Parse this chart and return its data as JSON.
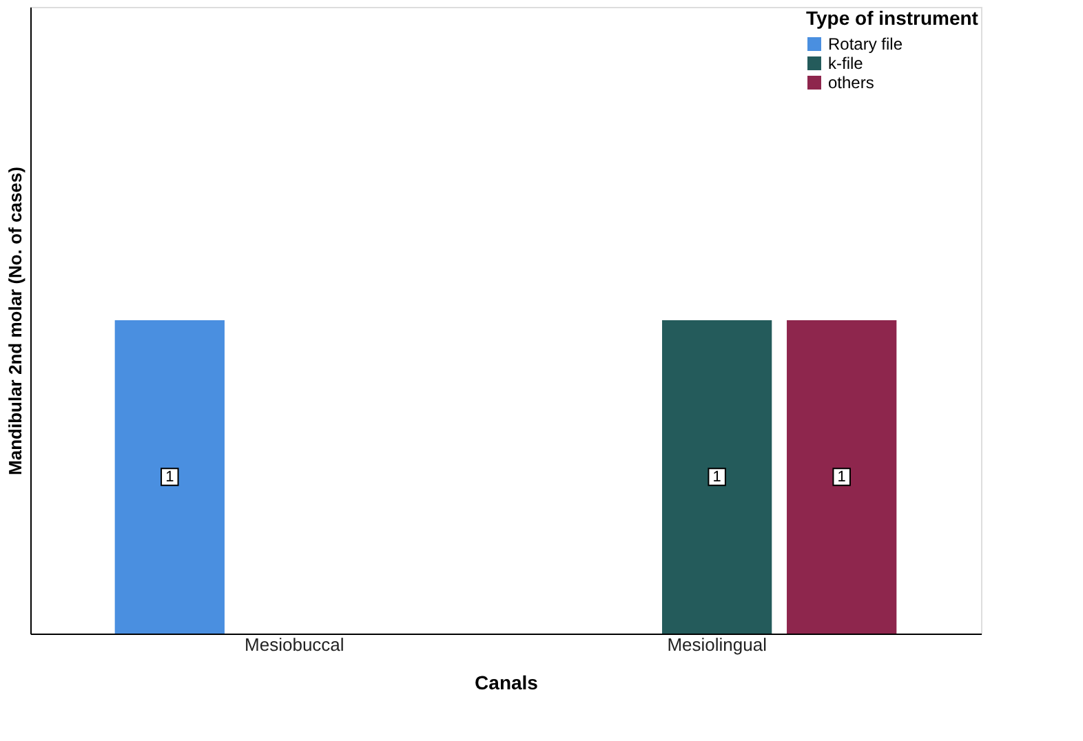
{
  "chart_data": {
    "type": "bar",
    "xlabel": "Canals",
    "ylabel": "Mandibular 2nd molar (No. of cases)",
    "legend_title": "Type of instrument",
    "categories": [
      "Mesiobuccal",
      "Mesiolingual"
    ],
    "series": [
      {
        "name": "Rotary file",
        "color": "#4a8fe0",
        "values": [
          1,
          null
        ]
      },
      {
        "name": "k-file",
        "color": "#245b5b",
        "values": [
          null,
          1
        ]
      },
      {
        "name": "others",
        "color": "#8e264d",
        "values": [
          null,
          1
        ]
      }
    ],
    "ylim": [
      0,
      2
    ],
    "tick_labels": "x",
    "grid": false,
    "legend": "top right",
    "data_labels": true
  }
}
